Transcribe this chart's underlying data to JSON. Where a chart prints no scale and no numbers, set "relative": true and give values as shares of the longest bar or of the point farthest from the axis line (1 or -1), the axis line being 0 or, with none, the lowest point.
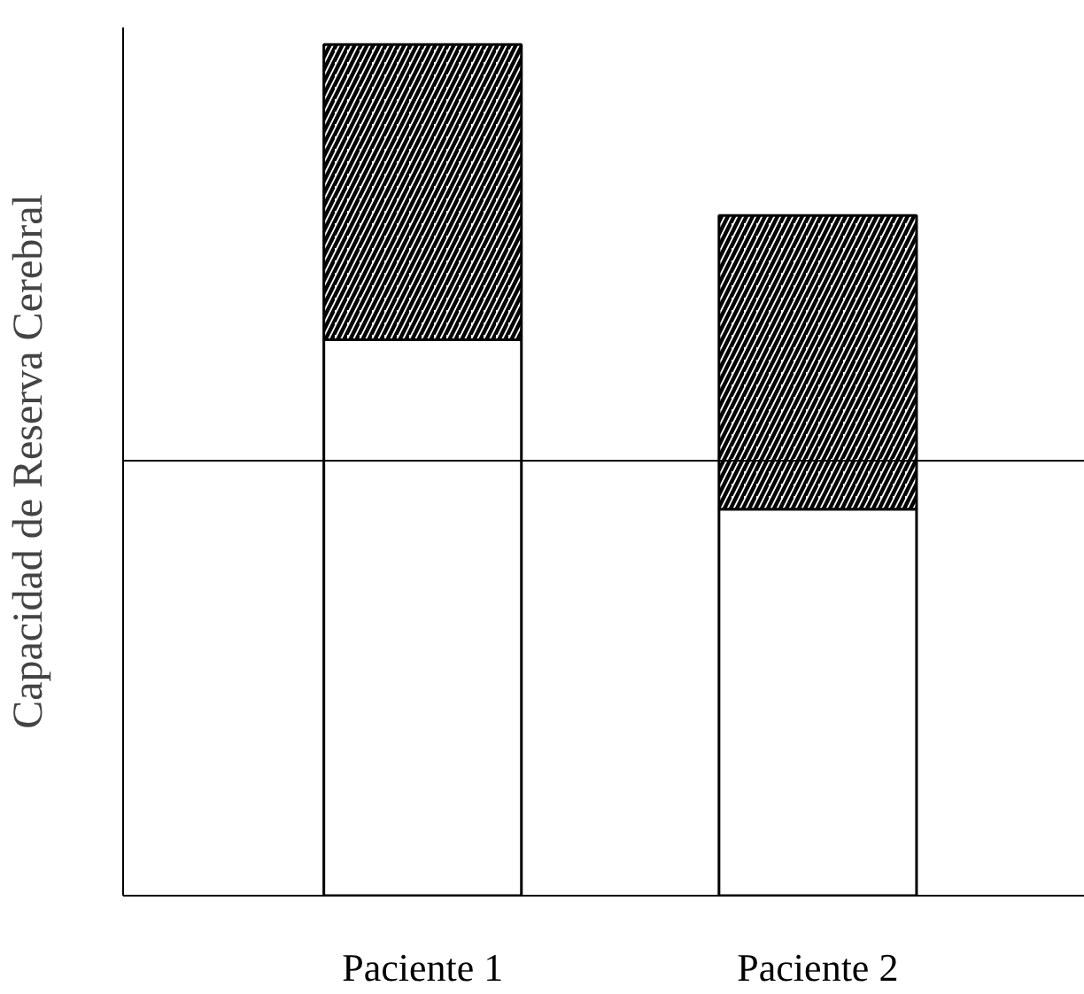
{
  "chart_data": {
    "type": "bar",
    "stacked": true,
    "relative": true,
    "ylabel": "Capacidad de Reserva Cerebral",
    "categories": [
      "Paciente 1",
      "Paciente 2"
    ],
    "series": [
      {
        "color": "#ffffff",
        "values": [
          0.653,
          0.454
        ]
      },
      {
        "color": "#000000",
        "values": [
          0.347,
          0.345
        ]
      }
    ],
    "ref_lines": [
      {
        "axis": "y",
        "value": 0.511,
        "color": "#000000"
      }
    ],
    "grid": false
  }
}
